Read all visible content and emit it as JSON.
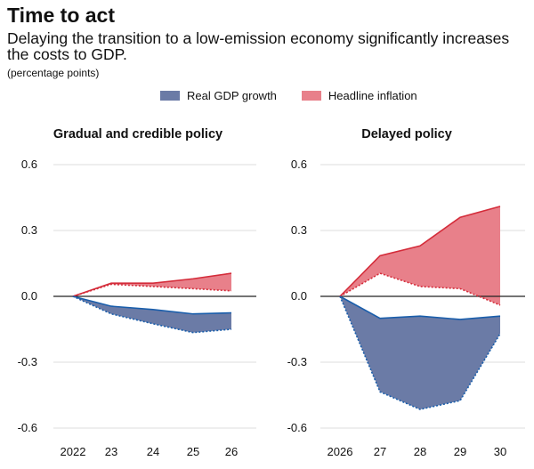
{
  "header": {
    "title": "Time to act",
    "subtitle": "Delaying the transition to a low-emission economy significantly increases the costs to GDP.",
    "unit": "(percentage points)"
  },
  "legend": [
    {
      "label": "Real GDP growth",
      "color": "#6b7ba6"
    },
    {
      "label": "Headline inflation",
      "color": "#e8808a"
    }
  ],
  "colors": {
    "gdp_fill": "#6b7ba6",
    "gdp_line": "#1a5eab",
    "infl_fill": "#e8808a",
    "infl_line": "#d42c3a",
    "grid": "#dddddd",
    "zero": "#222222"
  },
  "chart_data": [
    {
      "type": "area",
      "title": "Gradual and credible policy",
      "categories": [
        "2022",
        "23",
        "24",
        "25",
        "26"
      ],
      "yticks": [
        "0.6",
        "0.3",
        "0.0",
        "-0.3",
        "-0.6"
      ],
      "ylim": [
        -0.6,
        0.6
      ],
      "series": [
        {
          "name": "Headline inflation upper",
          "values": [
            0,
            0.06,
            0.06,
            0.08,
            0.105
          ]
        },
        {
          "name": "Headline inflation lower",
          "values": [
            0,
            0.055,
            0.045,
            0.035,
            0.025
          ]
        },
        {
          "name": "Real GDP growth upper",
          "values": [
            0,
            -0.045,
            -0.06,
            -0.08,
            -0.075
          ]
        },
        {
          "name": "Real GDP growth lower",
          "values": [
            0,
            -0.08,
            -0.125,
            -0.165,
            -0.15
          ]
        }
      ]
    },
    {
      "type": "area",
      "title": "Delayed policy",
      "categories": [
        "2026",
        "27",
        "28",
        "29",
        "30"
      ],
      "yticks": [
        "0.6",
        "0.3",
        "0.0",
        "-0.3",
        "-0.6"
      ],
      "ylim": [
        -0.6,
        0.6
      ],
      "series": [
        {
          "name": "Headline inflation upper",
          "values": [
            0,
            0.185,
            0.23,
            0.36,
            0.41
          ]
        },
        {
          "name": "Headline inflation lower",
          "values": [
            0,
            0.105,
            0.045,
            0.035,
            -0.04
          ]
        },
        {
          "name": "Real GDP growth upper",
          "values": [
            0,
            -0.1,
            -0.09,
            -0.105,
            -0.09
          ]
        },
        {
          "name": "Real GDP growth lower",
          "values": [
            0,
            -0.435,
            -0.515,
            -0.475,
            -0.17
          ]
        }
      ]
    }
  ]
}
